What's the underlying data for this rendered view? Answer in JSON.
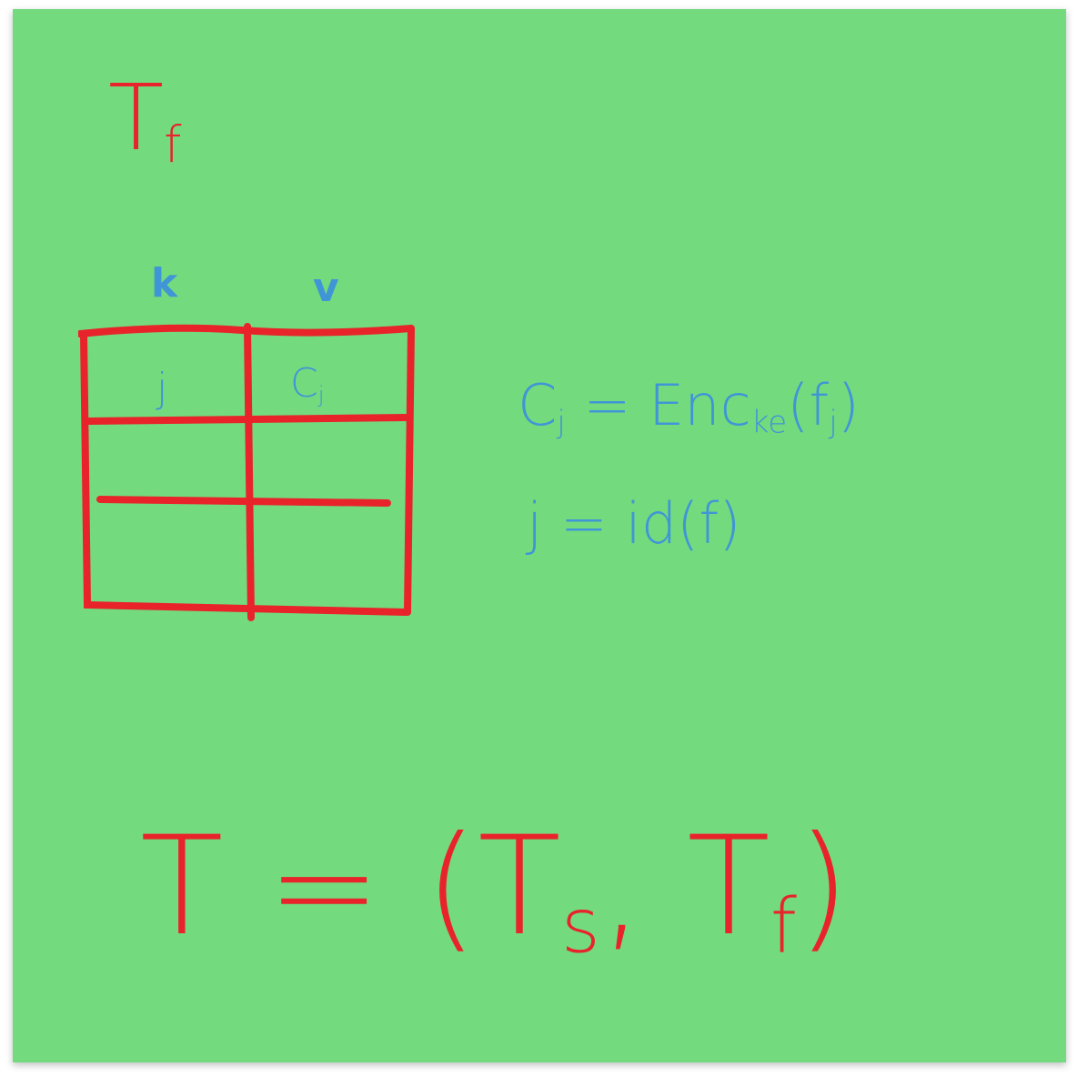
{
  "title": [
    {
      "text": "T",
      "sub": "f"
    }
  ],
  "table": {
    "header": [
      "k",
      "v"
    ],
    "rows": [
      [
        [
          {
            "text": "j"
          }
        ],
        [
          {
            "text": "C",
            "sub": "j"
          }
        ]
      ]
    ]
  },
  "equations": [
    [
      {
        "text": "C",
        "sub": "j"
      },
      {
        "text": " = Enc",
        "sub": "ke"
      },
      {
        "text": "(f",
        "sub": "j"
      },
      {
        "text": ")"
      }
    ],
    [
      {
        "text": "j = id(f)"
      }
    ]
  ],
  "formula": [
    {
      "text": "T = (T",
      "sub": "s"
    },
    {
      "text": ", T",
      "sub": "f"
    },
    {
      "text": ")"
    }
  ]
}
